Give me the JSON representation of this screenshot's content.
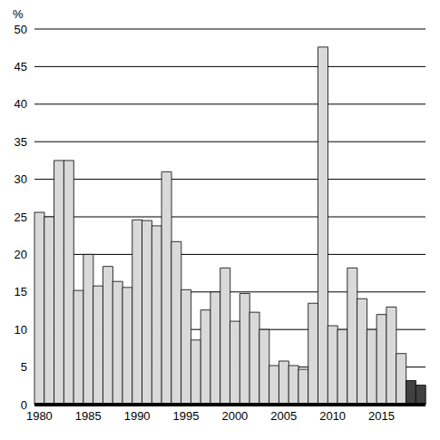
{
  "chart_data": {
    "type": "bar",
    "y_label": "%",
    "categories": [
      "1980",
      null,
      null,
      null,
      null,
      "1985",
      null,
      null,
      null,
      null,
      "1990",
      null,
      null,
      null,
      null,
      "1995",
      null,
      null,
      null,
      null,
      "2000",
      null,
      null,
      null,
      null,
      "2005",
      null,
      null,
      null,
      null,
      "2010",
      null,
      null,
      null,
      null,
      "2015",
      null,
      null,
      null,
      null
    ],
    "values": [
      25.6,
      25,
      32.5,
      32.5,
      15.2,
      20,
      15.8,
      18.4,
      16.4,
      15.6,
      24.6,
      24.5,
      23.8,
      31,
      21.7,
      15.3,
      8.6,
      12.6,
      15,
      18.2,
      11.1,
      14.8,
      12.3,
      10,
      5.2,
      5.8,
      5.2,
      4.7,
      13.5,
      47.6,
      10.5,
      10,
      18.2,
      14.1,
      10,
      12,
      13,
      6.8,
      3.2,
      2.6
    ],
    "colors": [
      "#d9d9d9",
      "#d9d9d9",
      "#d9d9d9",
      "#d9d9d9",
      "#d9d9d9",
      "#d9d9d9",
      "#d9d9d9",
      "#d9d9d9",
      "#d9d9d9",
      "#d9d9d9",
      "#d9d9d9",
      "#d9d9d9",
      "#d9d9d9",
      "#d9d9d9",
      "#d9d9d9",
      "#d9d9d9",
      "#d9d9d9",
      "#d9d9d9",
      "#d9d9d9",
      "#d9d9d9",
      "#d9d9d9",
      "#d9d9d9",
      "#d9d9d9",
      "#d9d9d9",
      "#d9d9d9",
      "#d9d9d9",
      "#d9d9d9",
      "#d9d9d9",
      "#d9d9d9",
      "#d9d9d9",
      "#d9d9d9",
      "#d9d9d9",
      "#d9d9d9",
      "#d9d9d9",
      "#d9d9d9",
      "#d9d9d9",
      "#d9d9d9",
      "#d9d9d9",
      "#404040",
      "#404040"
    ],
    "ylim": [
      0,
      50
    ],
    "yticks": [
      0,
      5,
      10,
      15,
      20,
      25,
      30,
      35,
      40,
      45,
      50
    ],
    "grid": true
  }
}
